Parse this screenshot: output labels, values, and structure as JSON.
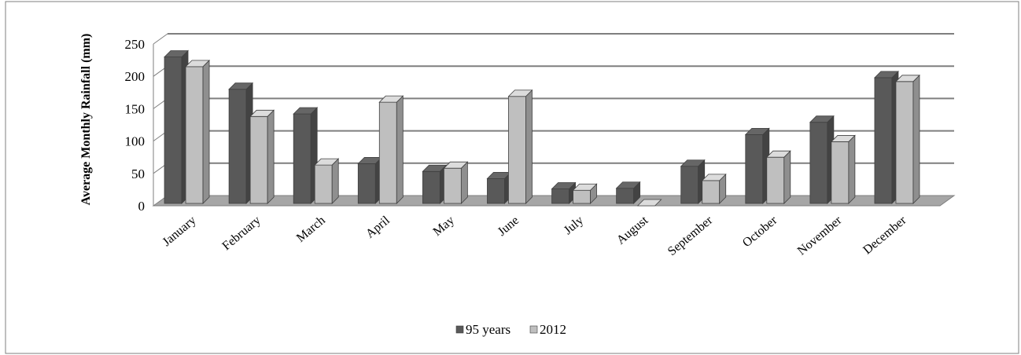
{
  "chart_data": {
    "type": "bar",
    "style": "3d-clustered-column",
    "ylabel": "Average Monthly Rainfall  (mm)",
    "ylim": [
      0,
      250
    ],
    "yticks": [
      0,
      50,
      100,
      150,
      200,
      250
    ],
    "grid": true,
    "legend_position": "bottom",
    "categories": [
      "January",
      "February",
      "March",
      "April",
      "May",
      "June",
      "July",
      "August",
      "September",
      "October",
      "November",
      "December"
    ],
    "series": [
      {
        "name": "95 years",
        "color": "#595959",
        "values": [
          230,
          180,
          142,
          65,
          53,
          42,
          26,
          27,
          61,
          110,
          129,
          198
        ]
      },
      {
        "name": "2012",
        "color": "#bfbfbf",
        "values": [
          215,
          138,
          63,
          160,
          58,
          169,
          24,
          0,
          39,
          75,
          99,
          192
        ]
      }
    ]
  }
}
